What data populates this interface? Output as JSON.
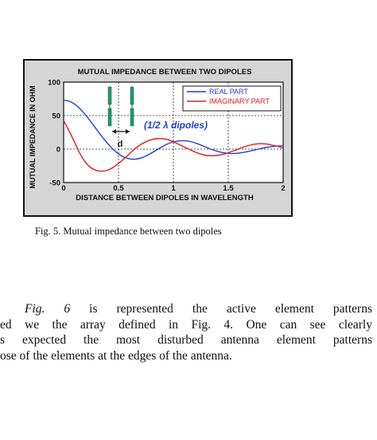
{
  "figure": {
    "caption": "Fig. 5.   Mutual impedance between two dipoles"
  },
  "chart_data": {
    "type": "line",
    "title": "MUTUAL IMPEDANCE BETWEEN TWO DIPOLES",
    "xlabel": "DISTANCE BETWEEN DIPOLES IN WAVELENGTH",
    "ylabel": "MUTUAL IMPEDANCE IN OHM",
    "xlim": [
      0,
      2
    ],
    "ylim": [
      -50,
      100
    ],
    "x_ticks": [
      "0",
      "0.5",
      "1",
      "1.5",
      "2"
    ],
    "y_ticks": [
      "100",
      "50",
      "0",
      "-50"
    ],
    "grid": true,
    "legend": "top-right",
    "annotation": "(1/2 λ dipoles)",
    "distance_label": "d",
    "colors": {
      "real": "#1f3fd8",
      "imag": "#e01a1a",
      "dipole": "#1f9c6a",
      "grid": "#222222",
      "plot_bg": "#ffffff"
    },
    "series": [
      {
        "name": "REAL PART",
        "x": [
          0.0,
          0.05,
          0.1,
          0.15,
          0.2,
          0.25,
          0.3,
          0.35,
          0.4,
          0.45,
          0.5,
          0.55,
          0.6,
          0.65,
          0.7,
          0.75,
          0.8,
          0.85,
          0.9,
          0.95,
          1.0,
          1.05,
          1.1,
          1.15,
          1.2,
          1.25,
          1.3,
          1.35,
          1.4,
          1.45,
          1.5,
          1.55,
          1.6,
          1.65,
          1.7,
          1.75,
          1.8,
          1.85,
          1.9,
          1.95,
          2.0
        ],
        "values": [
          73.1,
          71.5,
          67.1,
          60.1,
          50.9,
          40.4,
          29.4,
          18.6,
          8.6,
          -0.2,
          -7.1,
          -12.0,
          -14.6,
          -15.1,
          -13.6,
          -10.4,
          -6.0,
          -1.1,
          3.7,
          7.8,
          10.7,
          12.2,
          12.4,
          11.3,
          9.1,
          6.0,
          2.6,
          -0.6,
          -3.3,
          -5.3,
          -6.4,
          -6.6,
          -5.9,
          -4.6,
          -2.9,
          -1.0,
          0.9,
          2.5,
          3.8,
          4.5,
          4.7
        ]
      },
      {
        "name": "IMAGINARY PART",
        "x": [
          0.0,
          0.05,
          0.1,
          0.15,
          0.2,
          0.25,
          0.3,
          0.35,
          0.4,
          0.45,
          0.5,
          0.55,
          0.6,
          0.65,
          0.7,
          0.75,
          0.8,
          0.85,
          0.9,
          0.95,
          1.0,
          1.05,
          1.1,
          1.15,
          1.2,
          1.25,
          1.3,
          1.35,
          1.4,
          1.45,
          1.5,
          1.55,
          1.6,
          1.65,
          1.7,
          1.75,
          1.8,
          1.85,
          1.9,
          1.95,
          2.0
        ],
        "values": [
          42.5,
          27.0,
          10.0,
          -7.0,
          -20.0,
          -28.0,
          -32.0,
          -33.0,
          -31.5,
          -27.5,
          -21.5,
          -14.5,
          -7.0,
          0.5,
          6.5,
          11.0,
          14.0,
          15.5,
          15.5,
          14.0,
          11.0,
          7.0,
          3.0,
          -1.0,
          -4.5,
          -7.5,
          -9.5,
          -10.0,
          -9.5,
          -8.0,
          -5.5,
          -2.5,
          0.5,
          3.5,
          6.0,
          7.5,
          8.0,
          7.5,
          6.0,
          4.0,
          1.5
        ]
      }
    ]
  },
  "body": {
    "line1_lead": "Fig. 6",
    "line1_rest": " is represented the active element patterns",
    "line2": "ed we the array defined in Fig. 4. One can see clearly",
    "line3": "s expected the most disturbed antenna element patterns",
    "line4": "ose of the elements at the edges of the antenna."
  }
}
